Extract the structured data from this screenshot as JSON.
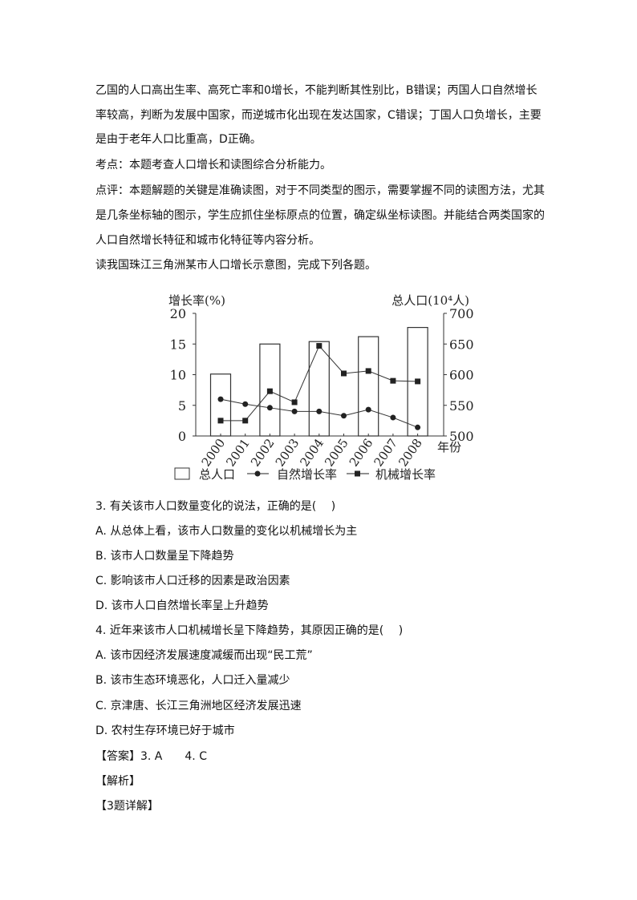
{
  "paragraphs": [
    "乙国的人口高出生率、高死亡率和0增长，不能判断其性别比，B错误；丙国人口自然增长",
    "率较高，判断为发展中国家，而逆城市化出现在发达国家，C错误；丁国人口负增长，主要",
    "是由于老年人口比重高，D正确。",
    "考点：本题考查人口增长和读图综合分析能力。",
    "点评：本题解题的关键是准确读图，对于不同类型的图示，需要掌握不同的读图方法，尤其",
    "是几条坐标轴的图示，学生应抓住坐标原点的位置，确定纵坐标读图。并能结合两类国家的",
    "人口自然增长特征和城市化特征等内容分析。",
    "读我国珠江三角洲某市人口增长示意图，完成下列各题。"
  ],
  "questions": [
    "3. 有关该市人口数量变化的说法，正确的是(　 )",
    "A. 从总体上看，该市人口数量的变化以机械增长为主",
    "B. 该市人口数量呈下降趋势",
    "C. 影响该市人口迁移的因素是政治因素",
    "D. 该市人口自然增长率呈上升趋势",
    "4. 近年来该市人口机械增长呈下降趋势，其原因正确的是(　 )",
    "A. 该市因经济发展速度减缓而出现“民工荒”",
    "B. 该市生态环境恶化，人口迁入量减少",
    "C. 京津唐、长江三角洲地区经济发展迅速",
    "D. 农村生存环境已好于城市",
    "【答案】3. A　　4. C",
    "【解析】",
    "【3题详解】"
  ],
  "chart_data": {
    "type": "bar+line",
    "ylabel_left": "增长率(%)",
    "ylabel_right": "总人口(10⁴人)",
    "xlabel": "年份",
    "ylim_left": [
      0,
      20
    ],
    "yticks_left": [
      "0",
      "5",
      "10",
      "15",
      "20"
    ],
    "ylim_right": [
      500,
      700
    ],
    "yticks_right": [
      "500",
      "550",
      "600",
      "650",
      "700"
    ],
    "categories": [
      "2000",
      "2001",
      "2002",
      "2003",
      "2004",
      "2005",
      "2006",
      "2007",
      "2008"
    ],
    "bars": {
      "name": "总人口",
      "axis": "right",
      "years": [
        "2000",
        "2002",
        "2004",
        "2006",
        "2008"
      ],
      "values": [
        601,
        650,
        654,
        662,
        677
      ]
    },
    "series": [
      {
        "name": "自然增长率",
        "marker": "circle",
        "axis": "left",
        "values": [
          6.0,
          5.2,
          4.6,
          4.0,
          4.0,
          3.3,
          4.3,
          3.0,
          1.4
        ]
      },
      {
        "name": "机械增长率",
        "marker": "square",
        "axis": "left",
        "values": [
          2.5,
          2.5,
          7.3,
          5.5,
          14.7,
          10.2,
          10.6,
          9.0,
          8.9
        ]
      }
    ],
    "legend": [
      "总人口",
      "自然增长率",
      "机械增长率"
    ],
    "legend_position": "bottom",
    "grid": false
  }
}
